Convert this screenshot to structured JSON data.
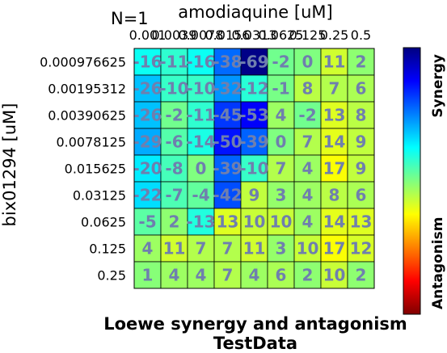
{
  "chart_data": {
    "type": "heatmap",
    "title": "Loewe synergy and antagonism",
    "subtitle": "TestData",
    "annotation": "N=1",
    "xlabel": "amodiaquine [uM]",
    "ylabel": "bix01294 [uM]",
    "x_tick_labels": [
      "0.001",
      "0.0039",
      "0.0078",
      "0.0156",
      "0.0313",
      "0.0625",
      "0.125",
      "0.25",
      "0.5"
    ],
    "y_tick_labels": [
      "0.000976625",
      "0.00195312",
      "0.00390625",
      "0.0078125",
      "0.015625",
      "0.03125",
      "0.0625",
      "0.125",
      "0.25"
    ],
    "values": [
      [
        -16,
        -11,
        -16,
        -38,
        -69,
        -2,
        0,
        11,
        2
      ],
      [
        -26,
        -10,
        -10,
        -32,
        -12,
        -1,
        8,
        7,
        6
      ],
      [
        -26,
        -2,
        -11,
        -45,
        -53,
        4,
        -2,
        13,
        8
      ],
      [
        -29,
        -6,
        -14,
        -50,
        -39,
        0,
        7,
        14,
        9
      ],
      [
        -20,
        -8,
        0,
        -39,
        -10,
        7,
        4,
        17,
        9
      ],
      [
        -22,
        -7,
        -4,
        -42,
        9,
        3,
        4,
        8,
        6
      ],
      [
        -5,
        2,
        -13,
        13,
        10,
        10,
        4,
        14,
        13
      ],
      [
        4,
        11,
        7,
        7,
        11,
        3,
        10,
        17,
        12
      ],
      [
        1,
        4,
        4,
        7,
        4,
        6,
        2,
        10,
        2
      ]
    ],
    "cell_labels": [
      [
        "-16",
        "-11",
        "-16",
        "-38",
        "-69",
        "-2",
        "0",
        "11",
        "2"
      ],
      [
        "-26",
        "-10",
        "-10",
        "-32",
        "-12",
        "-1",
        "8",
        "7",
        "6"
      ],
      [
        "-26",
        "-2",
        "-11",
        "-45",
        "-53",
        "4",
        "-2",
        "13",
        "8"
      ],
      [
        "-29",
        "-6",
        "-14",
        "-50",
        "-39",
        "0",
        "7",
        "14",
        "9"
      ],
      [
        "-20",
        "-8",
        "0",
        "-39",
        "-10",
        "7",
        "4",
        "17",
        "9"
      ],
      [
        "-22",
        "-7",
        "-4",
        "-42",
        "9",
        "3",
        "4",
        "8",
        "6"
      ],
      [
        "-5",
        "2",
        "-13",
        "13",
        "10",
        "10",
        "4",
        "14",
        "13"
      ],
      [
        "4",
        "11",
        "7",
        "7",
        "11",
        "3",
        "10",
        "17",
        "12"
      ],
      [
        "1",
        "4",
        "4",
        "7",
        "4",
        "6",
        "2",
        "10",
        "2"
      ]
    ],
    "color_range": [
      -70,
      70
    ],
    "colormap": "jet",
    "colorbar_labels": {
      "top": "Synergy",
      "bottom": "Antagonism"
    },
    "grid": true
  }
}
